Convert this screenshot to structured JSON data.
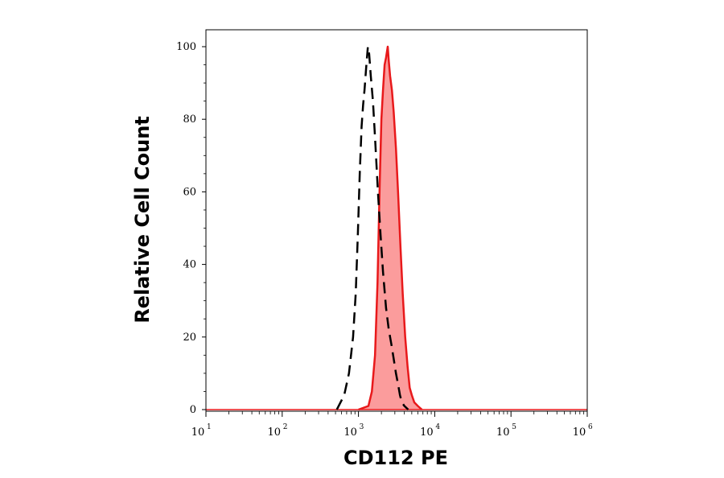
{
  "chart_data": {
    "type": "area",
    "title": "",
    "xlabel": "CD112 PE",
    "ylabel": "Relative Cell Count",
    "x_scale": "log",
    "xlim": [
      10,
      1000000
    ],
    "ylim": [
      0,
      100
    ],
    "x_ticks": [
      {
        "base": "10",
        "exp": "1",
        "value": 10
      },
      {
        "base": "10",
        "exp": "2",
        "value": 100
      },
      {
        "base": "10",
        "exp": "3",
        "value": 1000
      },
      {
        "base": "10",
        "exp": "4",
        "value": 10000
      },
      {
        "base": "10",
        "exp": "5",
        "value": 100000
      },
      {
        "base": "10",
        "exp": "6",
        "value": 1000000
      }
    ],
    "y_ticks": [
      "0",
      "20",
      "40",
      "60",
      "80",
      "100"
    ],
    "grid": false,
    "legend": "none",
    "series": [
      {
        "style": "filled-solid",
        "line_color": "#e8191b",
        "fill_color": "#fb9c9c",
        "x": [
          1000,
          1350,
          1500,
          1650,
          1780,
          1900,
          2000,
          2100,
          2200,
          2300,
          2420,
          2500,
          2600,
          2750,
          2900,
          3100,
          3300,
          3550,
          3800,
          4100,
          4400,
          4700,
          5000,
          5400,
          6000,
          6800
        ],
        "y": [
          0,
          1,
          5,
          15,
          35,
          62,
          80,
          88,
          95,
          97,
          100,
          96,
          92,
          88,
          82,
          72,
          60,
          45,
          32,
          20,
          12,
          6,
          4,
          2,
          1,
          0
        ]
      },
      {
        "style": "dashed",
        "line_color": "#000000",
        "x": [
          520,
          650,
          750,
          850,
          920,
          980,
          1040,
          1100,
          1150,
          1200,
          1260,
          1330,
          1380,
          1450,
          1550,
          1650,
          1800,
          1950,
          2100,
          2300,
          2500,
          2700,
          2900,
          3100,
          3300,
          3500,
          3700,
          4000,
          4500
        ],
        "y": [
          0,
          4,
          10,
          20,
          32,
          48,
          65,
          78,
          84,
          88,
          94,
          100,
          98,
          92,
          85,
          75,
          60,
          48,
          38,
          28,
          22,
          18,
          14,
          10,
          7,
          4,
          2,
          1,
          0
        ]
      }
    ]
  }
}
